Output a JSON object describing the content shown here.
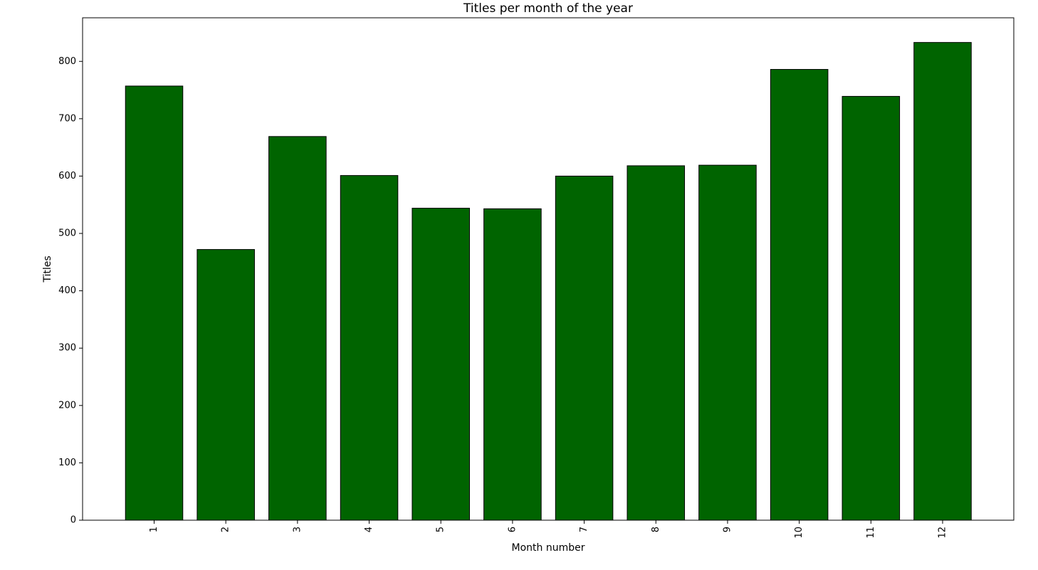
{
  "chart_data": {
    "type": "bar",
    "title": "Titles per month of the year",
    "xlabel": "Month number",
    "ylabel": "Titles",
    "categories": [
      "1",
      "2",
      "3",
      "4",
      "5",
      "6",
      "7",
      "8",
      "9",
      "10",
      "11",
      "12"
    ],
    "values": [
      757,
      472,
      669,
      601,
      544,
      543,
      600,
      618,
      619,
      786,
      739,
      833
    ],
    "ylim": [
      0,
      876
    ],
    "yticks": [
      0,
      100,
      200,
      300,
      400,
      500,
      600,
      700,
      800
    ],
    "x_tick_rotation": "vertical",
    "grid": false,
    "legend": "none",
    "colors": {
      "bar_fill": "#006400",
      "bar_edge": "#000000",
      "axis": "#000000",
      "background": "#ffffff"
    }
  }
}
